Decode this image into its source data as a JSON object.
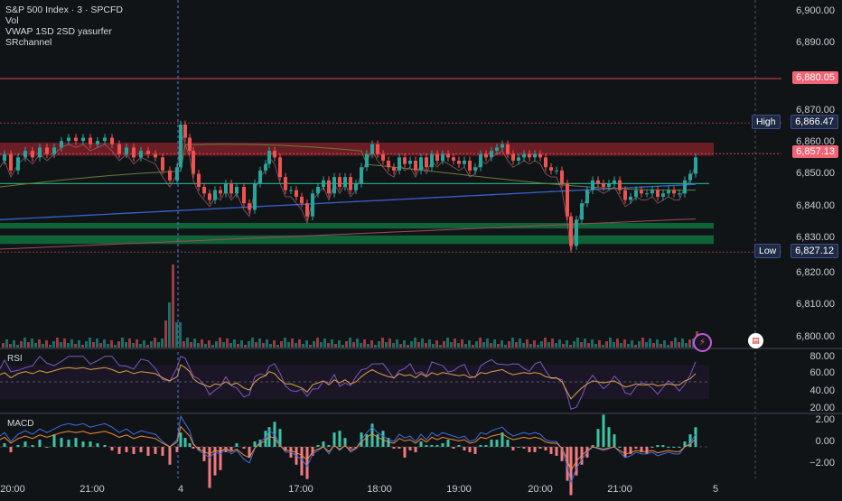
{
  "legend": {
    "title": "S&P 500 Index · 3 · SPCFD",
    "line2": "Vol",
    "line3": "VWAP 1SD 2SD yasurfer",
    "line4": "SRchannel"
  },
  "price_axis": {
    "ticks": [
      "6,900.00",
      "6,890.00",
      "6,880.00",
      "6,870.00",
      "6,860.00",
      "6,850.00",
      "6,840.00",
      "6,830.00",
      "6,820.00",
      "6,810.00",
      "6,800.00"
    ]
  },
  "price_tags": {
    "resistance": "6,880.05",
    "high_label": "High",
    "high": "6,866.47",
    "last": "6,857.13",
    "low_label": "Low",
    "low": "6,827.12"
  },
  "rsi": {
    "label": "RSI",
    "ticks": [
      "80.00",
      "60.00",
      "40.00",
      "20.00"
    ]
  },
  "macd": {
    "label": "MACD",
    "ticks": [
      "2.00",
      "0.00",
      "−2.00"
    ]
  },
  "time_axis": {
    "ticks": [
      "20:00",
      "21:00",
      "4",
      "17:00",
      "18:00",
      "19:00",
      "20:00",
      "21:00",
      "5"
    ]
  },
  "icons": {
    "event1": "lightning-icon",
    "event2": "us-flag-icon"
  },
  "colors": {
    "background": "#111417",
    "up": "#26a69a",
    "down": "#ef5350",
    "resistance_zone": "#7a1f28",
    "support_zone": "#0f6b3a",
    "vwap": "#3a5fd0",
    "rsi_line": "#7e57c2",
    "rsi_ma": "#d9a441"
  },
  "chart_data": {
    "type": "candlestick",
    "symbol": "S&P 500 Index",
    "interval": "3",
    "source": "SPCFD",
    "y_range": [
      6798,
      6904
    ],
    "high": 6866.47,
    "low": 6827.12,
    "last": 6857.13,
    "resistance_line": 6880.05,
    "rsi_range": [
      15,
      85
    ],
    "macd_range": [
      -3.0,
      3.0
    ],
    "series_path": [
      [
        0,
        6855
      ],
      [
        5,
        6857
      ],
      [
        12,
        6852
      ],
      [
        20,
        6856
      ],
      [
        28,
        6858
      ],
      [
        36,
        6856
      ],
      [
        44,
        6859
      ],
      [
        52,
        6857
      ],
      [
        60,
        6859
      ],
      [
        68,
        6861
      ],
      [
        76,
        6862
      ],
      [
        84,
        6861
      ],
      [
        92,
        6862
      ],
      [
        100,
        6860
      ],
      [
        108,
        6861
      ],
      [
        116,
        6862
      ],
      [
        124,
        6860
      ],
      [
        132,
        6857
      ],
      [
        140,
        6859
      ],
      [
        148,
        6856
      ],
      [
        156,
        6858
      ],
      [
        164,
        6857
      ],
      [
        172,
        6856
      ],
      [
        180,
        6852
      ],
      [
        188,
        6849
      ],
      [
        196,
        6853
      ],
      [
        200,
        6866
      ],
      [
        205,
        6862
      ],
      [
        210,
        6858
      ],
      [
        214,
        6851
      ],
      [
        220,
        6847
      ],
      [
        226,
        6845
      ],
      [
        232,
        6843
      ],
      [
        238,
        6846
      ],
      [
        244,
        6845
      ],
      [
        250,
        6848
      ],
      [
        256,
        6845
      ],
      [
        262,
        6847
      ],
      [
        270,
        6842
      ],
      [
        276,
        6840
      ],
      [
        282,
        6848
      ],
      [
        288,
        6852
      ],
      [
        294,
        6854
      ],
      [
        298,
        6858
      ],
      [
        304,
        6856
      ],
      [
        310,
        6850
      ],
      [
        316,
        6846
      ],
      [
        322,
        6846
      ],
      [
        328,
        6844
      ],
      [
        334,
        6842
      ],
      [
        340,
        6838
      ],
      [
        346,
        6845
      ],
      [
        352,
        6847
      ],
      [
        358,
        6849
      ],
      [
        364,
        6845
      ],
      [
        370,
        6850
      ],
      [
        376,
        6847
      ],
      [
        382,
        6850
      ],
      [
        388,
        6846
      ],
      [
        394,
        6848
      ],
      [
        400,
        6853
      ],
      [
        406,
        6857
      ],
      [
        412,
        6860
      ],
      [
        418,
        6857
      ],
      [
        424,
        6855
      ],
      [
        430,
        6853
      ],
      [
        436,
        6852
      ],
      [
        442,
        6856
      ],
      [
        448,
        6854
      ],
      [
        454,
        6855
      ],
      [
        460,
        6852
      ],
      [
        466,
        6856
      ],
      [
        472,
        6853
      ],
      [
        478,
        6857
      ],
      [
        484,
        6855
      ],
      [
        490,
        6857
      ],
      [
        496,
        6856
      ],
      [
        502,
        6855
      ],
      [
        508,
        6854
      ],
      [
        514,
        6855
      ],
      [
        520,
        6852
      ],
      [
        526,
        6853
      ],
      [
        532,
        6857
      ],
      [
        538,
        6856
      ],
      [
        544,
        6858
      ],
      [
        550,
        6859
      ],
      [
        556,
        6860
      ],
      [
        562,
        6857
      ],
      [
        568,
        6855
      ],
      [
        574,
        6856
      ],
      [
        580,
        6857
      ],
      [
        586,
        6856
      ],
      [
        592,
        6857
      ],
      [
        598,
        6856
      ],
      [
        604,
        6853
      ],
      [
        610,
        6852
      ],
      [
        616,
        6852
      ],
      [
        622,
        6848
      ],
      [
        628,
        6838
      ],
      [
        632,
        6829
      ],
      [
        638,
        6837
      ],
      [
        644,
        6842
      ],
      [
        650,
        6846
      ],
      [
        656,
        6849
      ],
      [
        662,
        6848
      ],
      [
        668,
        6847
      ],
      [
        674,
        6848
      ],
      [
        680,
        6849
      ],
      [
        686,
        6846
      ],
      [
        692,
        6843
      ],
      [
        698,
        6844
      ],
      [
        704,
        6846
      ],
      [
        710,
        6845
      ],
      [
        716,
        6845
      ],
      [
        722,
        6846
      ],
      [
        728,
        6844
      ],
      [
        734,
        6845
      ],
      [
        740,
        6846
      ],
      [
        746,
        6845
      ],
      [
        752,
        6845
      ],
      [
        758,
        6849
      ],
      [
        764,
        6851
      ],
      [
        770,
        6856
      ]
    ]
  }
}
